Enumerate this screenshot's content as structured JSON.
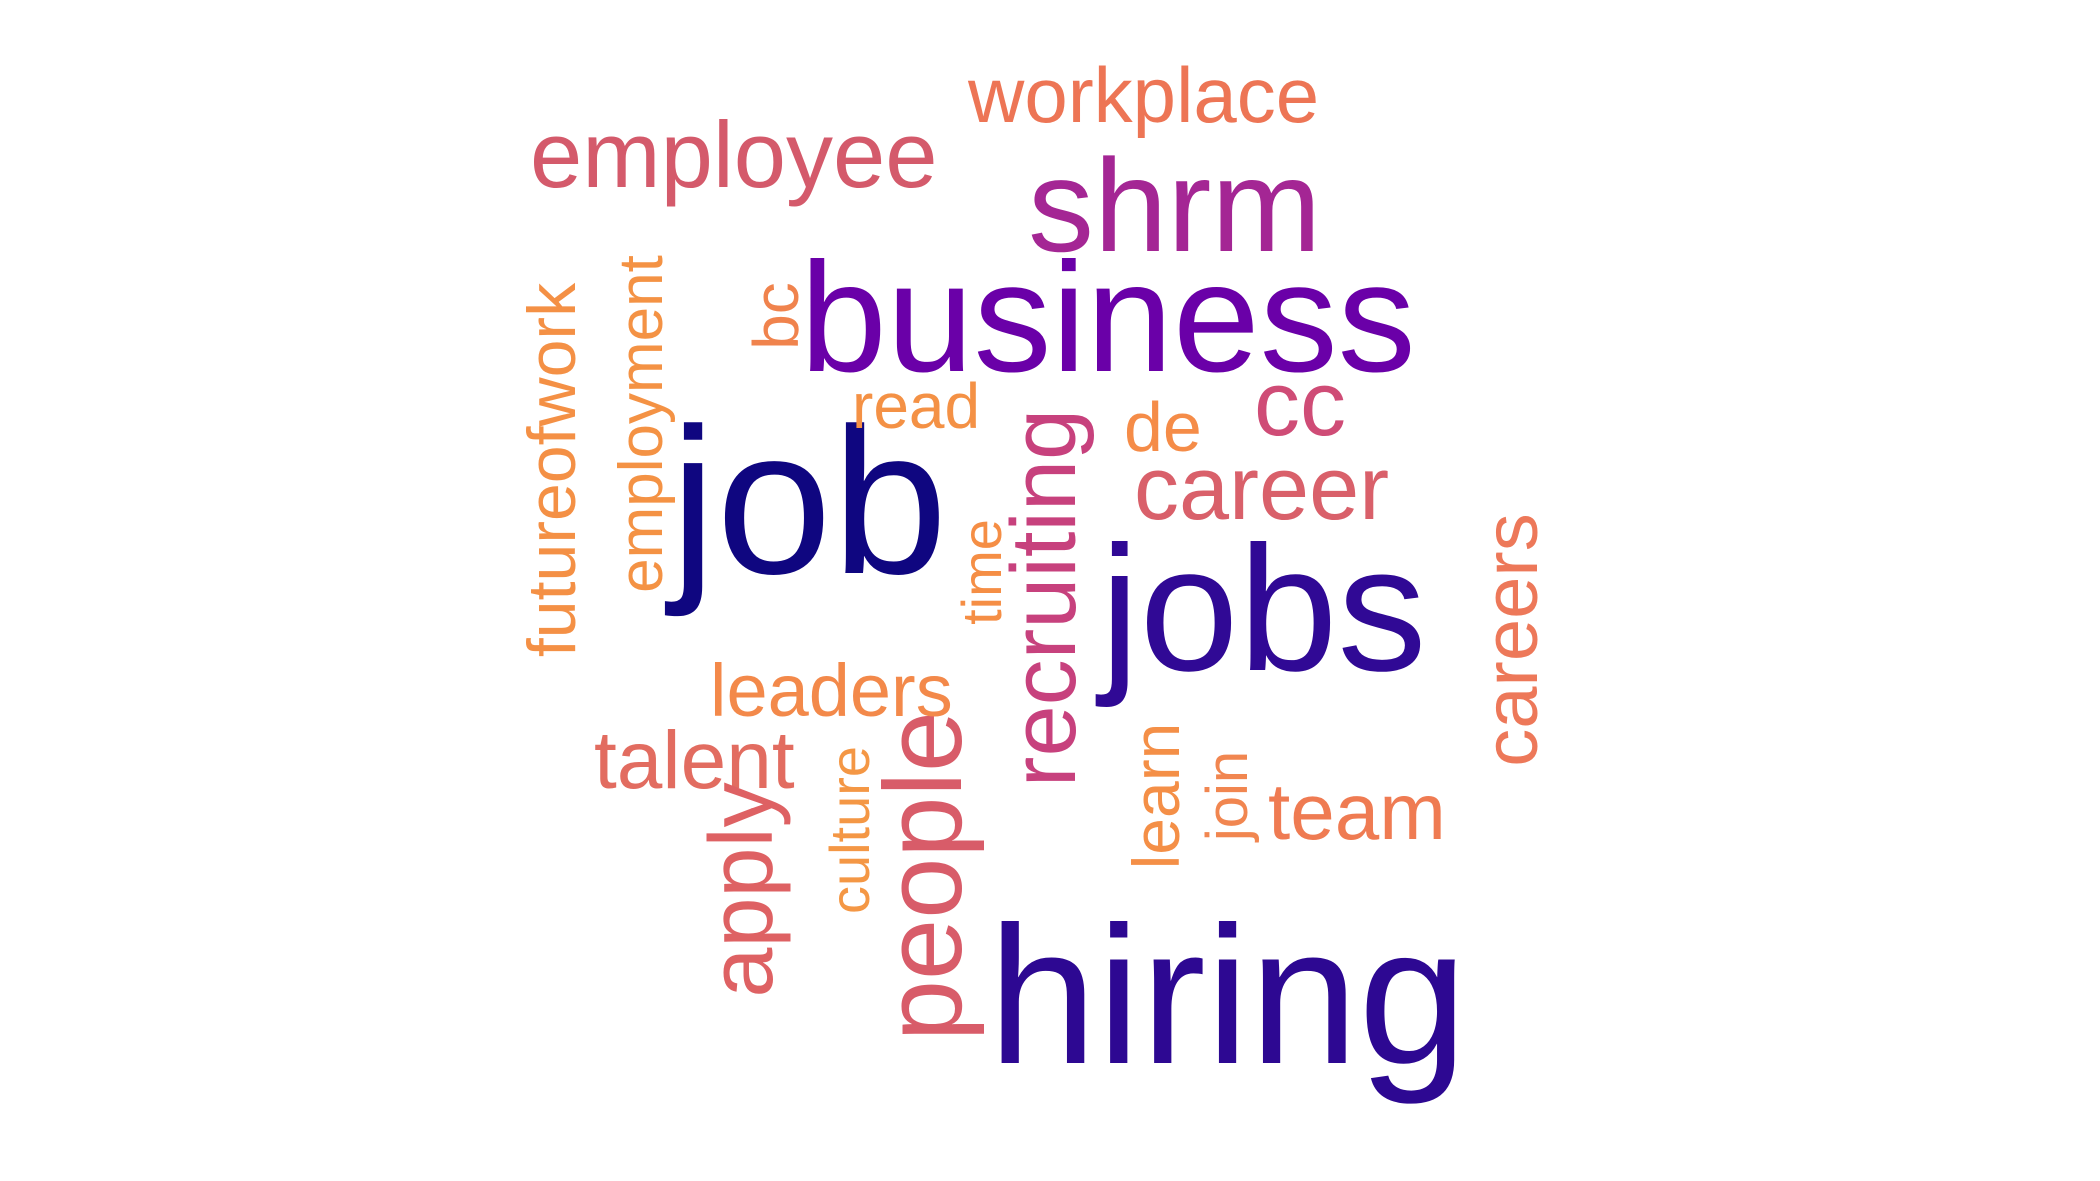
{
  "word_cloud": {
    "words": [
      {
        "text": "hiring",
        "color": "#2d0892",
        "orientation": "horizontal"
      },
      {
        "text": "job",
        "color": "#0f0680",
        "orientation": "horizontal"
      },
      {
        "text": "jobs",
        "color": "#300995",
        "orientation": "horizontal"
      },
      {
        "text": "business",
        "color": "#6a00a8",
        "orientation": "horizontal"
      },
      {
        "text": "shrm",
        "color": "#a42694",
        "orientation": "horizontal"
      },
      {
        "text": "employee",
        "color": "#d45a6b",
        "orientation": "horizontal"
      },
      {
        "text": "workplace",
        "color": "#ed7555",
        "orientation": "horizontal"
      },
      {
        "text": "recruiting",
        "color": "#c7417d",
        "orientation": "vertical"
      },
      {
        "text": "careers",
        "color": "#ed7859",
        "orientation": "vertical"
      },
      {
        "text": "career",
        "color": "#d9606a",
        "orientation": "horizontal"
      },
      {
        "text": "cc",
        "color": "#cf4c76",
        "orientation": "horizontal"
      },
      {
        "text": "people",
        "color": "#d85c69",
        "orientation": "vertical"
      },
      {
        "text": "team",
        "color": "#ef7b52",
        "orientation": "horizontal"
      },
      {
        "text": "talent",
        "color": "#e26c60",
        "orientation": "horizontal"
      },
      {
        "text": "apply",
        "color": "#de6163",
        "orientation": "vertical"
      },
      {
        "text": "leaders",
        "color": "#f3894a",
        "orientation": "horizontal"
      },
      {
        "text": "employment",
        "color": "#f49244",
        "orientation": "vertical"
      },
      {
        "text": "futureofwork",
        "color": "#f49045",
        "orientation": "vertical"
      },
      {
        "text": "bc",
        "color": "#f0834d",
        "orientation": "vertical"
      },
      {
        "text": "read",
        "color": "#f49145",
        "orientation": "horizontal"
      },
      {
        "text": "de",
        "color": "#f58c48",
        "orientation": "horizontal"
      },
      {
        "text": "time",
        "color": "#f58e45",
        "orientation": "vertical"
      },
      {
        "text": "culture",
        "color": "#f49745",
        "orientation": "vertical"
      },
      {
        "text": "learn",
        "color": "#f48f47",
        "orientation": "vertical"
      },
      {
        "text": "join",
        "color": "#f18650",
        "orientation": "vertical"
      }
    ]
  }
}
